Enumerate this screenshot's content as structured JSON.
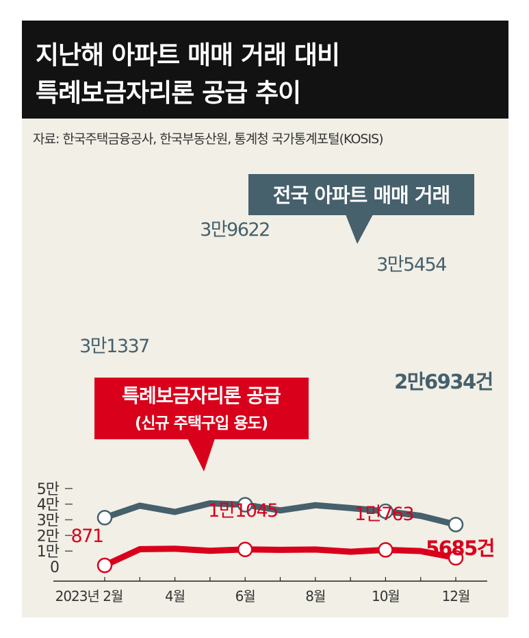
{
  "title": {
    "line1": "지난해 아파트 매매 거래 대비",
    "line2": "특례보금자리론 공급 추이"
  },
  "source": "자료: 한국주택금융공사, 한국부동산원, 통계청 국가통계포털(KOSIS)",
  "colors": {
    "apartment": "#46606c",
    "loan": "#d9001b",
    "background": "#f1efe6",
    "title_bg": "#121212"
  },
  "chart_data": {
    "type": "line",
    "x": [
      "2023-02",
      "2023-03",
      "2023-04",
      "2023-05",
      "2023-06",
      "2023-07",
      "2023-08",
      "2023-09",
      "2023-10",
      "2023-11",
      "2023-12"
    ],
    "x_tick_labels": [
      "2023년 2월",
      "4월",
      "6월",
      "8월",
      "10월",
      "12월"
    ],
    "x_tick_index": [
      0,
      2,
      4,
      6,
      8,
      10
    ],
    "y_tick_labels": [
      "0",
      "1만",
      "2만",
      "3만",
      "4만",
      "5만"
    ],
    "ylim": [
      0,
      50000
    ],
    "series": [
      {
        "name": "전국 아파트 매매 거래",
        "values": [
          31337,
          39000,
          35000,
          40500,
          39622,
          36000,
          39300,
          37500,
          35454,
          32500,
          26934
        ],
        "labels": [
          "3만1337",
          "",
          "",
          "",
          "3만9622",
          "",
          "",
          "",
          "3만5454",
          "",
          "2만6934건"
        ],
        "marked": [
          0,
          4,
          8,
          10
        ]
      },
      {
        "name": "특례보금자리론 공급",
        "subtitle": "(신규 주택구입 용도)",
        "values": [
          871,
          11200,
          11500,
          10200,
          11045,
          10800,
          11000,
          9600,
          10763,
          10000,
          5685
        ],
        "labels": [
          "871",
          "",
          "",
          "",
          "1만1045",
          "",
          "",
          "",
          "1만763",
          "",
          "5685건"
        ],
        "marked": [
          0,
          4,
          8,
          10
        ]
      }
    ]
  }
}
